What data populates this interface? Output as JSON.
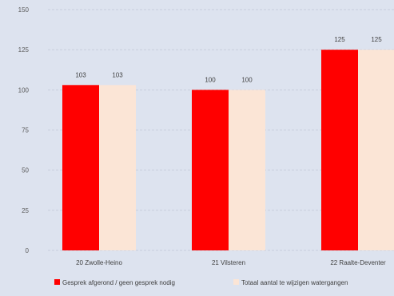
{
  "chart_data": {
    "type": "bar",
    "title": "",
    "xlabel": "",
    "ylabel": "",
    "ylim": [
      0,
      150
    ],
    "yticks": [
      0,
      25,
      50,
      75,
      100,
      125,
      150
    ],
    "grid": true,
    "legend_position": "bottom",
    "categories": [
      "20 Zwolle-Heino",
      "21 Vilsteren",
      "22 Raalte-Deventer"
    ],
    "series": [
      {
        "name": "Gesprek afgerond / geen gesprek nodig",
        "values": [
          103,
          100,
          125
        ],
        "color": "#ff0000"
      },
      {
        "name": "Totaal aantal te wijzigen watergangen",
        "values": [
          103,
          100,
          125
        ],
        "color": "#fbe5d6"
      }
    ]
  }
}
